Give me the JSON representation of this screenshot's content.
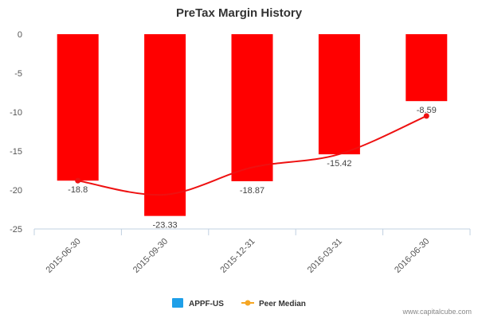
{
  "chart_data": {
    "type": "bar",
    "title": "PreTax Margin History",
    "categories": [
      "2015-06-30",
      "2015-09-30",
      "2015-12-31",
      "2016-03-31",
      "2016-06-30"
    ],
    "series": [
      {
        "name": "APPF-US",
        "kind": "bar",
        "color": "#ff0000",
        "legend_color": "#1e9fe8",
        "values": [
          -18.8,
          -23.33,
          -18.87,
          -15.42,
          -8.59
        ],
        "data_labels": [
          "-18.8",
          "-23.33",
          "-18.87",
          "-15.42",
          "-8.59"
        ]
      },
      {
        "name": "Peer Median",
        "kind": "line",
        "color": "#ee1111",
        "legend_color": "#f5a623",
        "values": [
          -18.8,
          -20.6,
          -17.1,
          -15.4,
          -10.5
        ]
      }
    ],
    "yticks": [
      0,
      -5,
      -10,
      -15,
      -20,
      -25
    ],
    "ylim": [
      -25,
      0
    ],
    "grid": false,
    "legend_position": "bottom-center"
  },
  "credit": "www.capitalcube.com"
}
